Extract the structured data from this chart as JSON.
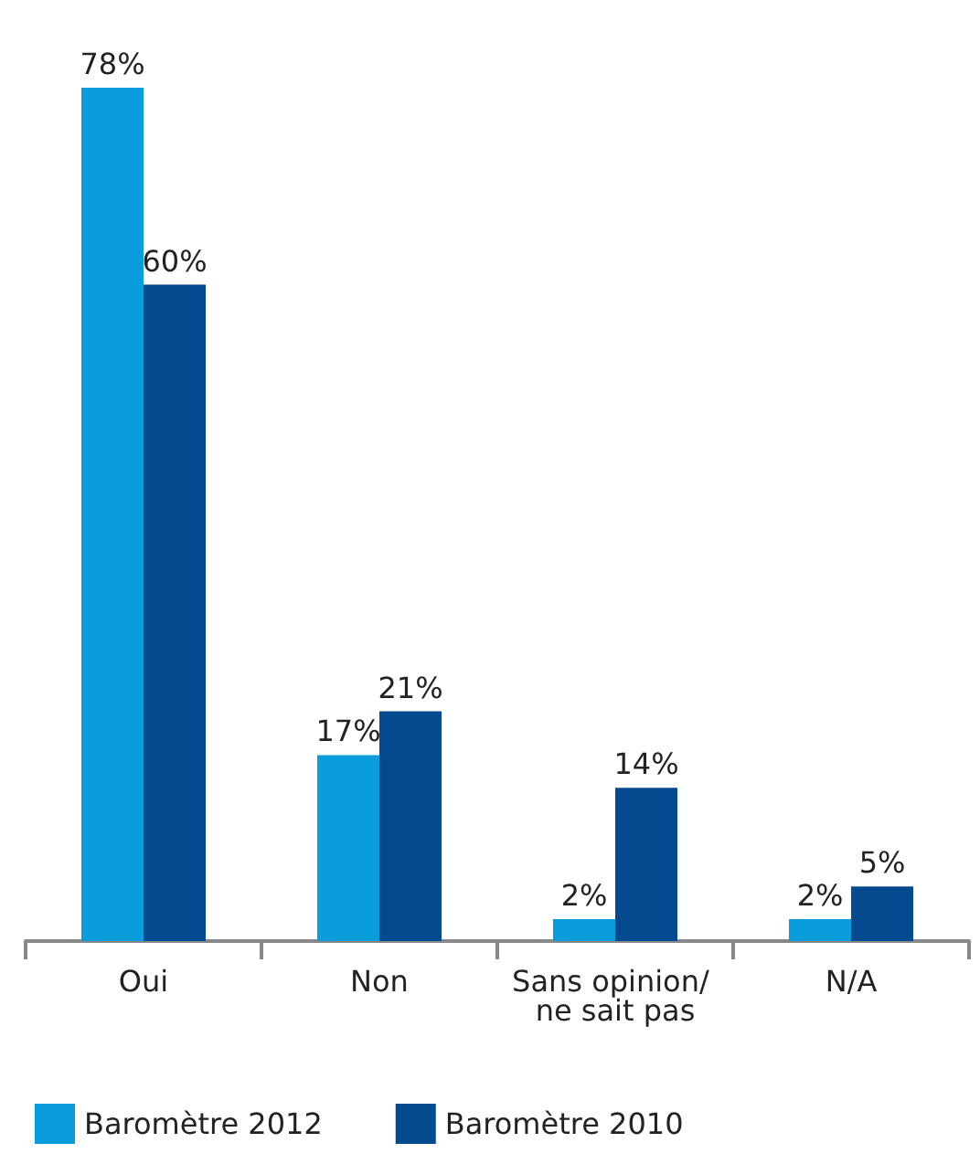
{
  "chart_data": {
    "type": "bar",
    "categories": [
      "Oui",
      "Non",
      "Sans opinion/ ne sait pas",
      "N/A"
    ],
    "series": [
      {
        "name": "Baromètre 2012",
        "color": "#0a9ddb",
        "values": [
          78,
          17,
          2,
          2
        ],
        "value_labels": [
          "78%",
          "17%",
          "2%",
          "2%"
        ]
      },
      {
        "name": "Baromètre 2010",
        "color": "#044a8e",
        "values": [
          60,
          21,
          14,
          5
        ],
        "value_labels": [
          "60%",
          "21%",
          "14%",
          "5%"
        ]
      }
    ],
    "legend": "bottom left"
  }
}
